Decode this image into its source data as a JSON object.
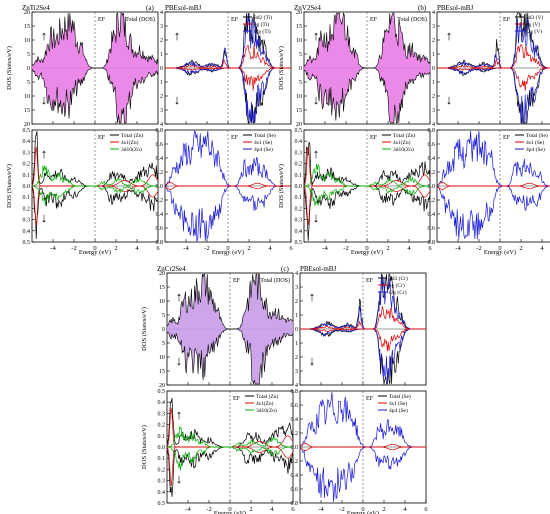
{
  "chart_data": [
    {
      "type": "area",
      "title": "ZnTi2Se4",
      "panel_letter": "(a)",
      "xlabel": "Energy (eV)",
      "ylabel": "DOS (States/eV)",
      "xlim": [
        -6,
        6
      ],
      "xticks": [
        -4,
        -2,
        0,
        2,
        4,
        6
      ],
      "top_ylim": [
        -20,
        20
      ],
      "top_yticks_labels": [
        "20",
        "15",
        "10",
        "5",
        "0",
        "5",
        "10",
        "15",
        "20"
      ],
      "top_legend": "Total (DOS)",
      "ef_label": "EF",
      "bottom_ylim": [
        -0.5,
        0.5
      ],
      "bottom_yticks_labels": [
        "0.5",
        "0.4",
        "0.3",
        "0.2",
        "0.1",
        "0.0",
        "0.1",
        "0.2",
        "0.3",
        "0.4",
        "0.5"
      ],
      "bottom_legend": [
        "Total (Zn)",
        "4s1(Zn)",
        "3d10(Zn)"
      ],
      "series": [
        {
          "name": "Total (DOS)",
          "color": "#e86ee0",
          "x": [
            -5.5,
            -5,
            -4.5,
            -4,
            -3.5,
            -3,
            -2.5,
            -2,
            -1.5,
            -1,
            -0.5,
            0,
            0.5,
            1,
            1.5,
            2,
            2.5,
            3,
            3.5,
            4,
            4.5,
            5,
            5.5
          ],
          "up": [
            2,
            4,
            6,
            9,
            8,
            12,
            16,
            10,
            6,
            3,
            1,
            0,
            0,
            0,
            3,
            10,
            15,
            12,
            9,
            7,
            4,
            3,
            2
          ],
          "down": [
            2,
            5,
            7,
            10,
            9,
            12,
            10,
            6,
            4,
            2,
            1,
            0,
            0,
            0,
            2,
            8,
            16,
            12,
            8,
            6,
            3,
            2,
            2
          ]
        }
      ]
    },
    {
      "type": "line",
      "title": "PBEsol-mBJ",
      "xlabel": "Energy (eV)",
      "xlim": [
        -6,
        6
      ],
      "top_ylim": [
        -4,
        4
      ],
      "top_yticks_labels": [
        "4",
        "3",
        "2",
        "1",
        "0",
        "1",
        "2",
        "3",
        "4"
      ],
      "top_legend": [
        "3d2 (Ti)",
        "eg (Ti)",
        "t2g (Ti)"
      ],
      "bottom_ylim": [
        -0.8,
        0.8
      ],
      "bottom_yticks_labels": [
        "0.8",
        "0.6",
        "0.4",
        "0.2",
        "0.0",
        "0.2",
        "0.4",
        "0.6",
        "0.8"
      ],
      "bottom_legend": [
        "Total (Se)",
        "4s1 (Se)",
        "4p4 (Se)"
      ]
    },
    {
      "type": "area",
      "title": "ZnV2Se4",
      "panel_letter": "(b)",
      "xlabel": "Energy (eV)",
      "ylabel": "DOS (States/eV)",
      "xlim": [
        -6,
        6
      ],
      "top_legend": "Total (DOS)",
      "bottom_legend": [
        "Total (Zn)",
        "4s1(Zn)",
        "3d10(Zn)"
      ]
    },
    {
      "type": "line",
      "title": "PBEsol-mBJ",
      "xlabel": "Energy (eV)",
      "xlim": [
        -6,
        6
      ],
      "top_legend": [
        "3d3 (V)",
        "eg (V)",
        "t2g (V)"
      ],
      "bottom_legend": [
        "Total (Se)",
        "4s1 (Se)",
        "4p4 (Se)"
      ]
    },
    {
      "type": "area",
      "title": "ZnCr2Se4",
      "panel_letter": "(c)",
      "xlabel": "Energy (eV)",
      "ylabel": "DOS (States/eV)",
      "xlim": [
        -6,
        6
      ],
      "top_legend": "Total (DOS)",
      "bottom_legend": [
        "Total (Zn)",
        "4s1(Zn)",
        "3d10(Zn)"
      ]
    },
    {
      "type": "line",
      "title": "PBEsol-mBJ",
      "xlabel": "Energy (eV)",
      "xlim": [
        -6,
        6
      ],
      "top_legend": [
        "3d3 (Cr)",
        "eg (Cr)",
        "t2g (Cr)"
      ],
      "bottom_legend": [
        "Total (Se)",
        "4s1 (Se)",
        "4p4 (Se)"
      ]
    }
  ],
  "colors": {
    "fill": "#e87ce4",
    "fill2": "#c89ce8",
    "black": "#000000",
    "red": "#e00000",
    "green": "#00b000",
    "blue": "#1a1ad8"
  }
}
